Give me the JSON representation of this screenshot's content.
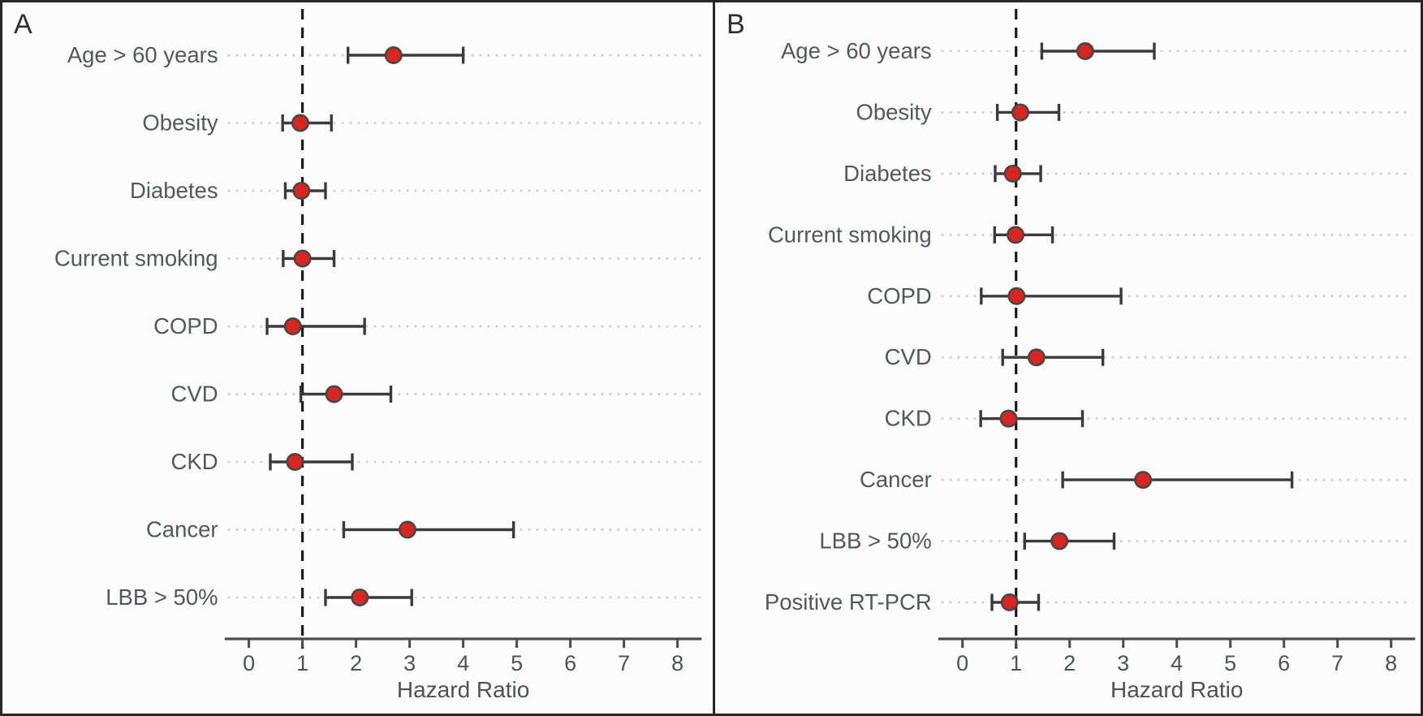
{
  "figure": {
    "xlabel": "Hazard Ratio",
    "reference_line_x": 1,
    "colors": {
      "point_fill": "#d9251d",
      "point_stroke": "#474747",
      "ci_line": "#3b3b3b",
      "axis": "#4c4c4c",
      "reference_dashed": "#1c1c1c",
      "row_guide_dotted": "#c7c9ca",
      "label_text": "#54575c",
      "tick_text": "#4e5255",
      "frame": "#272727"
    }
  },
  "chart_data": [
    {
      "type": "scatter",
      "panel": "A",
      "title": "",
      "xlabel": "Hazard Ratio",
      "x_ticks": [
        0,
        1,
        2,
        3,
        4,
        5,
        6,
        7,
        8
      ],
      "xlim": [
        -0.45,
        8.45
      ],
      "reference_line_x": 1,
      "grid": "dotted horizontal row guides",
      "legend": "none",
      "categories": [
        "Age > 60 years",
        "Obesity",
        "Diabetes",
        "Current smoking",
        "COPD",
        "CVD",
        "CKD",
        "Cancer",
        "LBB > 50%"
      ],
      "series": [
        {
          "name": "Hazard Ratio (point estimate with 95% CI)",
          "values": [
            2.7,
            0.96,
            0.98,
            1.0,
            0.82,
            1.59,
            0.86,
            2.96,
            2.07
          ],
          "ci_low": [
            1.85,
            0.63,
            0.68,
            0.64,
            0.34,
            0.97,
            0.4,
            1.77,
            1.43
          ],
          "ci_high": [
            4.0,
            1.54,
            1.43,
            1.59,
            2.16,
            2.65,
            1.93,
            4.94,
            3.04
          ]
        }
      ]
    },
    {
      "type": "scatter",
      "panel": "B",
      "title": "",
      "xlabel": "Hazard Ratio",
      "x_ticks": [
        0,
        1,
        2,
        3,
        4,
        5,
        6,
        7,
        8
      ],
      "xlim": [
        -0.45,
        8.45
      ],
      "reference_line_x": 1,
      "grid": "dotted horizontal row guides",
      "legend": "none",
      "categories": [
        "Age > 60 years",
        "Obesity",
        "Diabetes",
        "Current smoking",
        "COPD",
        "CVD",
        "CKD",
        "Cancer",
        "LBB > 50%",
        "Positive RT-PCR"
      ],
      "series": [
        {
          "name": "Hazard Ratio (point estimate with 95% CI)",
          "values": [
            2.29,
            1.08,
            0.94,
            0.99,
            1.01,
            1.38,
            0.86,
            3.37,
            1.81,
            0.88
          ],
          "ci_low": [
            1.48,
            0.65,
            0.61,
            0.6,
            0.35,
            0.75,
            0.34,
            1.87,
            1.16,
            0.55
          ],
          "ci_high": [
            3.58,
            1.8,
            1.46,
            1.68,
            2.96,
            2.62,
            2.24,
            6.15,
            2.83,
            1.42
          ]
        }
      ]
    }
  ]
}
